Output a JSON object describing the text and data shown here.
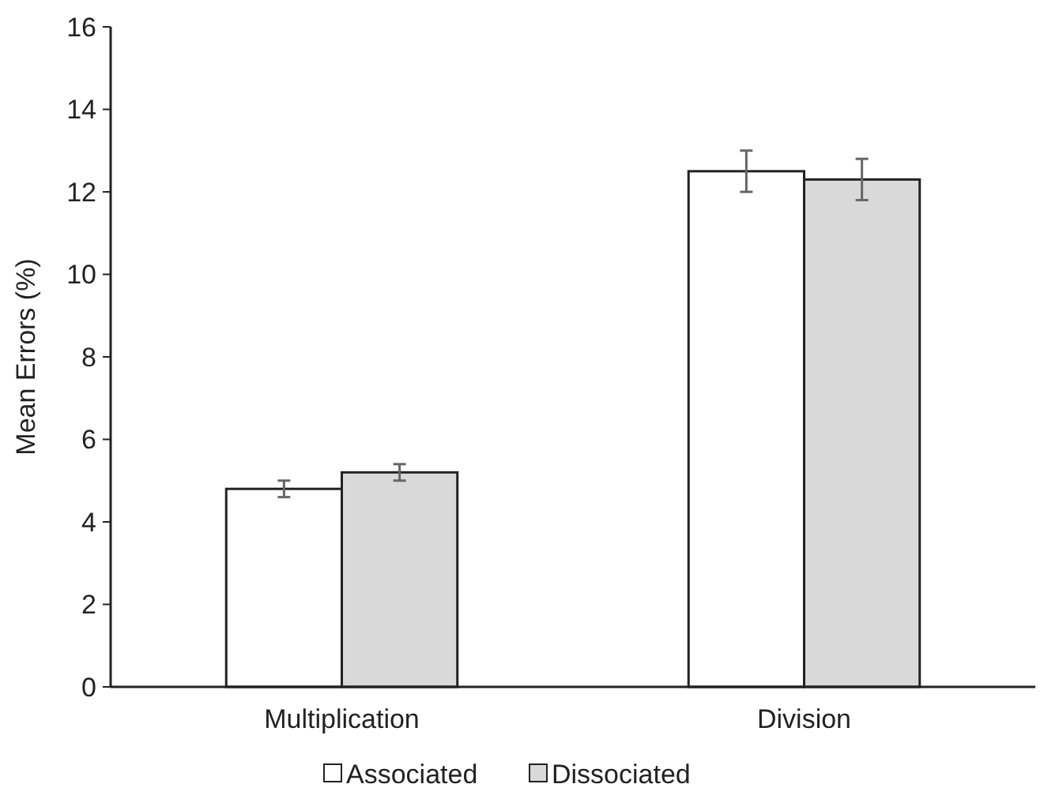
{
  "chart_data": {
    "type": "bar",
    "ylabel": "Mean Errors (%)",
    "categories": [
      "Multiplication",
      "Division"
    ],
    "series": [
      {
        "name": "Associated",
        "color": "#ffffff",
        "values": [
          4.8,
          12.5
        ],
        "errors": [
          0.2,
          0.5
        ]
      },
      {
        "name": "Dissociated",
        "color": "#d9d9d9",
        "values": [
          5.2,
          12.3
        ],
        "errors": [
          0.2,
          0.5
        ]
      }
    ],
    "ylim": [
      0,
      16
    ],
    "yticks": [
      0,
      2,
      4,
      6,
      8,
      10,
      12,
      14,
      16
    ],
    "grid": false,
    "legend": "bottom"
  }
}
